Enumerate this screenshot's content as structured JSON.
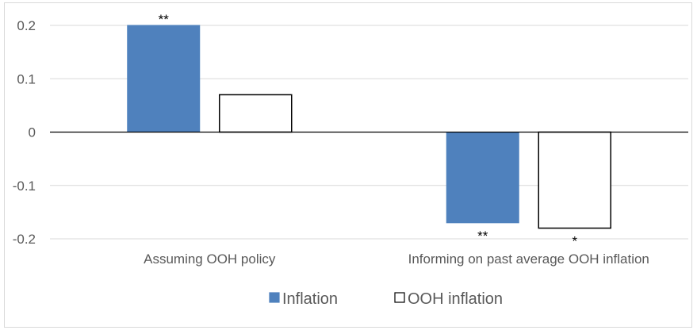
{
  "chart_data": {
    "type": "bar",
    "categories": [
      "Assuming OOH policy",
      "Informing on past average OOH inflation"
    ],
    "series": [
      {
        "name": "Inflation",
        "values": [
          0.2,
          -0.17
        ],
        "significance": [
          "**",
          "**"
        ],
        "fill": "#4f81bd",
        "stroke": "#4f81bd"
      },
      {
        "name": "OOH inflation",
        "values": [
          0.07,
          -0.18
        ],
        "significance": [
          "",
          "*"
        ],
        "fill": "#ffffff",
        "stroke": "#000000"
      }
    ],
    "y_ticks": [
      0.2,
      0.1,
      0,
      -0.1,
      -0.2
    ],
    "y_tick_labels": [
      "0.2",
      "0.1",
      "0",
      "-0.1",
      "-0.2"
    ],
    "ylim": [
      -0.2,
      0.2
    ],
    "grid": true,
    "legend": "bottom-center",
    "grid_color": "#d9d9d9",
    "zero_line_color": "#000000"
  }
}
